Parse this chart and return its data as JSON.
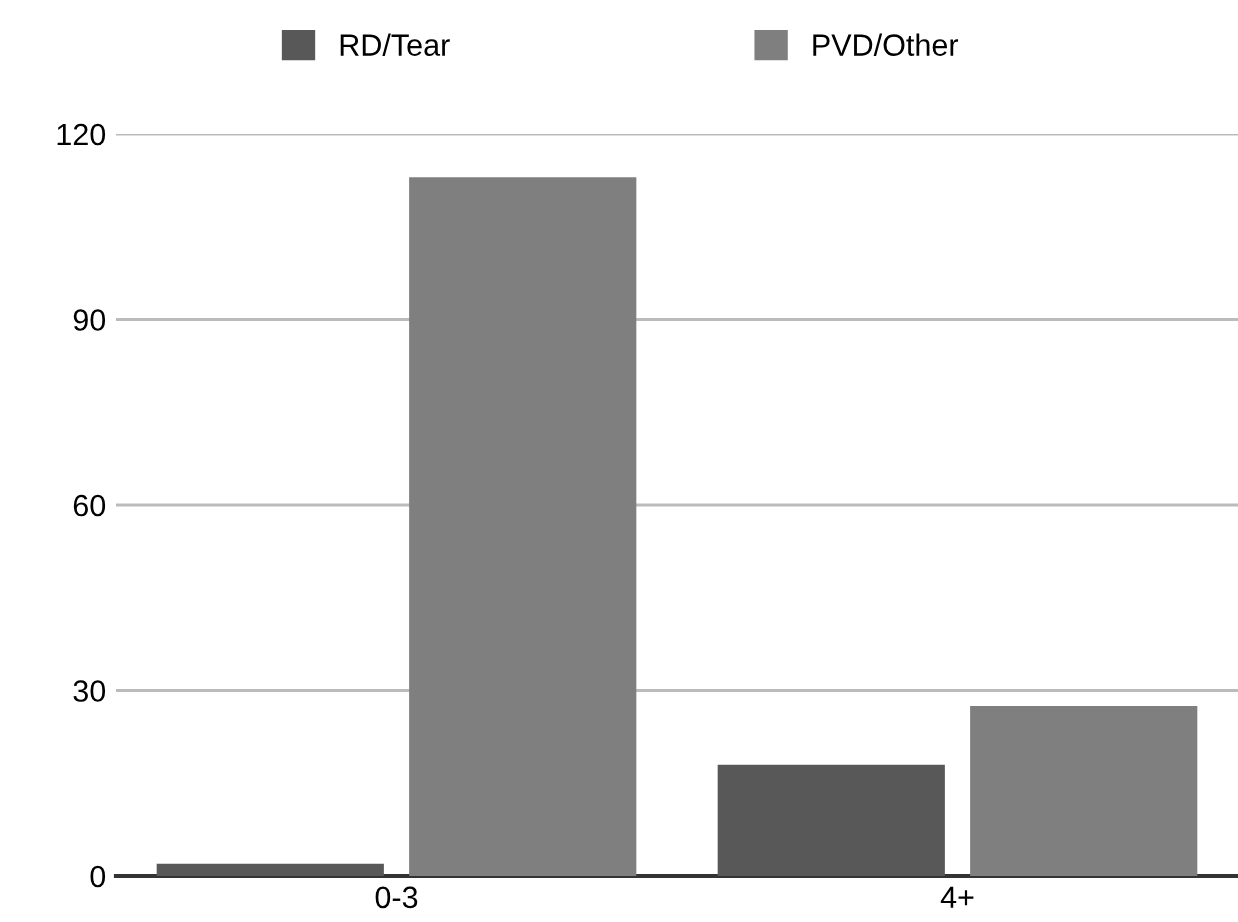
{
  "chart_data": {
    "type": "bar",
    "categories": [
      "0-3",
      "4+"
    ],
    "series": [
      {
        "name": "RD/Tear",
        "color": "#585858",
        "values": [
          2,
          18
        ]
      },
      {
        "name": "PVD/Other",
        "color": "#7f7f7f",
        "values": [
          113,
          27.5
        ]
      }
    ],
    "ylim": [
      0,
      120
    ],
    "yticks": [
      0,
      30,
      60,
      90,
      120
    ],
    "grid": "y",
    "legend": "top"
  }
}
